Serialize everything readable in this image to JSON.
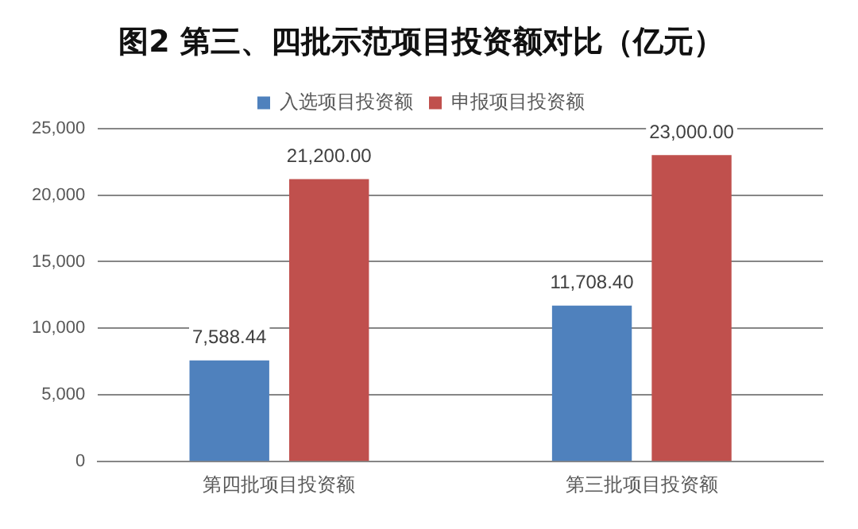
{
  "chart_data": {
    "type": "bar",
    "title": "图2 第三、四批示范项目投资额对比（亿元）",
    "categories": [
      "第四批项目投资额",
      "第三批项目投资额"
    ],
    "series": [
      {
        "name": "入选项目投资额",
        "color": "#4f81bd",
        "values": [
          7588.44,
          11708.4
        ],
        "value_labels": [
          "7,588.44",
          "11,708.40"
        ]
      },
      {
        "name": "申报项目投资额",
        "color": "#c0504d",
        "values": [
          21200,
          23000
        ],
        "value_labels": [
          "21,200.00",
          "23,000.00"
        ]
      }
    ],
    "ylim": [
      0,
      25000
    ],
    "yticks": [
      {
        "value": 0,
        "label": "0"
      },
      {
        "value": 5000,
        "label": "5,000"
      },
      {
        "value": 10000,
        "label": "10,000"
      },
      {
        "value": 15000,
        "label": "15,000"
      },
      {
        "value": 20000,
        "label": "20,000"
      },
      {
        "value": 25000,
        "label": "25,000"
      }
    ],
    "grid": "y",
    "legend": "top"
  }
}
